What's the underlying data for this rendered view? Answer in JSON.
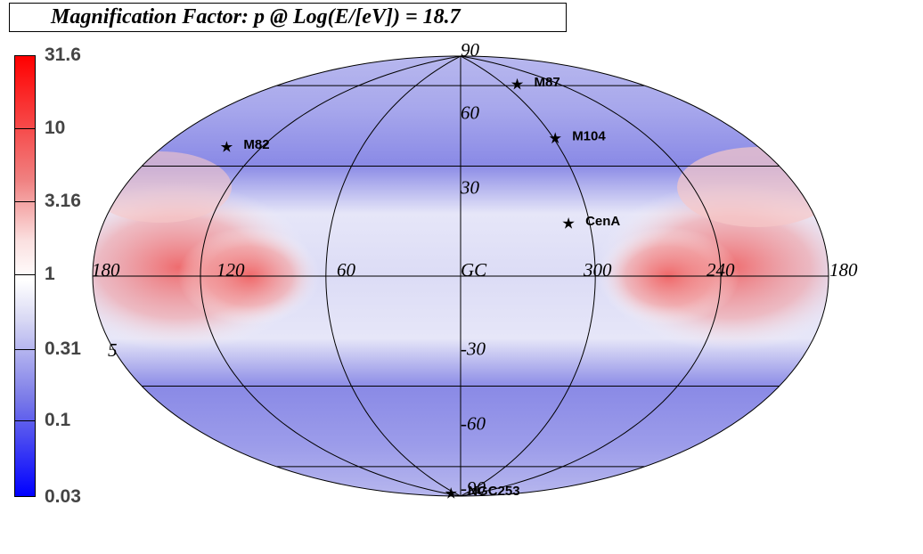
{
  "title": "Magnification Factor: p @ Log(E/[eV]) = 18.7",
  "colorbar": {
    "labels": [
      "31.6",
      "10",
      "3.16",
      "1",
      "0.31",
      "0.1",
      "0.03"
    ],
    "values": [
      31.6,
      10,
      3.16,
      1,
      0.31,
      0.1,
      0.03
    ],
    "colors": {
      "high": "#ff0000",
      "mid": "#ffffff",
      "low": "#0000ff"
    }
  },
  "map": {
    "projection": "Hammer-Aitoff",
    "longitude_labels": [
      "180",
      "120",
      "60",
      "GC",
      "300",
      "240",
      "180"
    ],
    "longitude_values": [
      180,
      120,
      60,
      0,
      300,
      240,
      180
    ],
    "latitude_labels": [
      "90",
      "60",
      "30",
      "-30",
      "-60",
      "-90"
    ],
    "latitude_values": [
      90,
      60,
      30,
      -30,
      -60,
      -90
    ],
    "edge_fragment": "5"
  },
  "sources": [
    {
      "name": "M87",
      "lon": -76,
      "lat": 74
    },
    {
      "name": "M104",
      "lon": -61,
      "lat": 51
    },
    {
      "name": "M82",
      "lon": 141,
      "lat": 41
    },
    {
      "name": "CenA",
      "lon": -50,
      "lat": 19
    },
    {
      "name": "NGC253",
      "lon": 98,
      "lat": -88
    }
  ]
}
